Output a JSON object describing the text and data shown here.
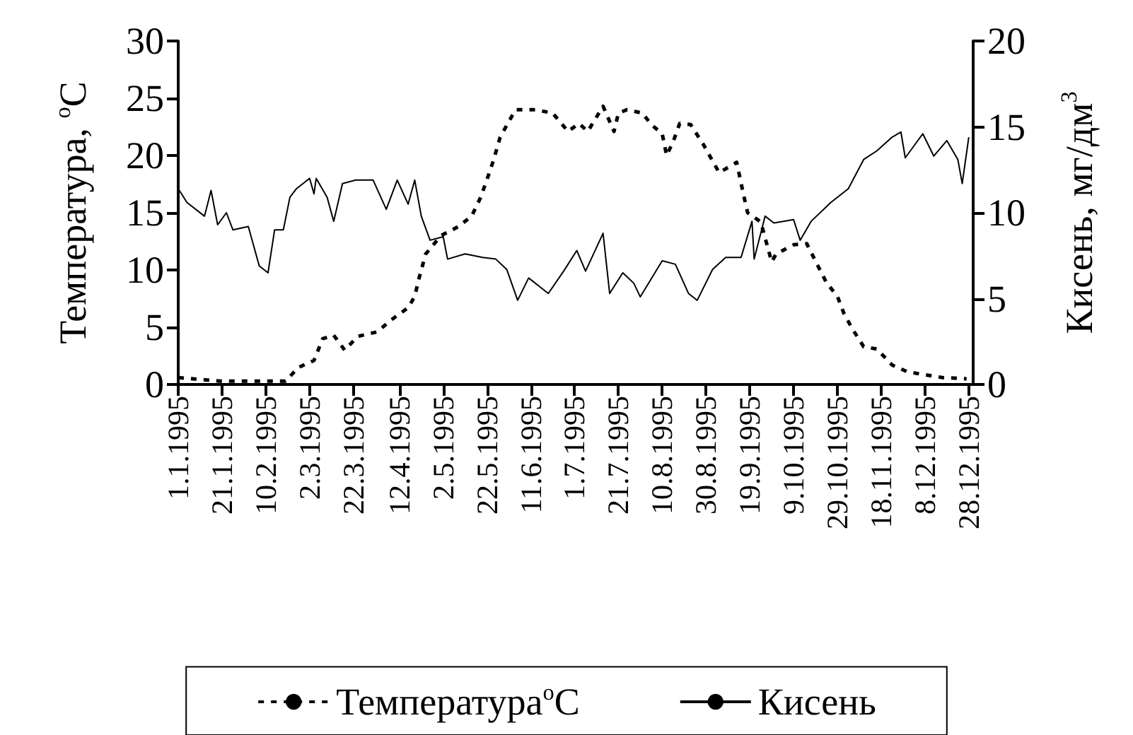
{
  "chart_data": {
    "type": "line",
    "ylabel": "Температура, $^{o}$C",
    "y2label": "Кисень, мг/дм$^{3}$",
    "xlim": [
      "1995-01-01",
      "1995-12-30"
    ],
    "xticks": [
      {
        "value": "1995-01-01",
        "label": "1.1.1995"
      },
      {
        "value": "1995-01-21",
        "label": "21.1.1995"
      },
      {
        "value": "1995-02-10",
        "label": "10.2.1995"
      },
      {
        "value": "1995-03-02",
        "label": "2.3.1995"
      },
      {
        "value": "1995-03-22",
        "label": "22.3.1995"
      },
      {
        "value": "1995-04-12",
        "label": "12.4.1995"
      },
      {
        "value": "1995-05-02",
        "label": "2.5.1995"
      },
      {
        "value": "1995-05-22",
        "label": "22.5.1995"
      },
      {
        "value": "1995-06-11",
        "label": "11.6.1995"
      },
      {
        "value": "1995-07-01",
        "label": "1.7.1995"
      },
      {
        "value": "1995-07-21",
        "label": "21.7.1995"
      },
      {
        "value": "1995-08-10",
        "label": "10.8.1995"
      },
      {
        "value": "1995-08-30",
        "label": "30.8.1995"
      },
      {
        "value": "1995-09-19",
        "label": "19.9.1995"
      },
      {
        "value": "1995-10-09",
        "label": "9.10.1995"
      },
      {
        "value": "1995-10-29",
        "label": "29.10.1995"
      },
      {
        "value": "1995-11-18",
        "label": "18.11.1995"
      },
      {
        "value": "1995-12-08",
        "label": "8.12.1995"
      },
      {
        "value": "1995-12-28",
        "label": "28.12.1995"
      }
    ],
    "ylim": [
      0,
      30
    ],
    "yticks": [
      0,
      5,
      10,
      15,
      20,
      25,
      30
    ],
    "y2lim": [
      0,
      20
    ],
    "y2ticks": [
      0,
      5,
      10,
      15,
      20
    ],
    "grid": false,
    "legend": "bottom",
    "marker": "none",
    "series": [
      {
        "name": "Температура$^{o}$C",
        "color": "#000000",
        "line_style": "dashed",
        "x": [
          "1995-01-01",
          "1995-01-20",
          "1995-02-19",
          "1995-02-25",
          "1995-03-04",
          "1995-03-08",
          "1995-03-13",
          "1995-03-18",
          "1995-03-24",
          "1995-04-02",
          "1995-04-08",
          "1995-04-16",
          "1995-04-19",
          "1995-04-21",
          "1995-04-24",
          "1995-05-01",
          "1995-05-09",
          "1995-05-15",
          "1995-05-19",
          "1995-05-22",
          "1995-05-25",
          "1995-05-28",
          "1995-06-04",
          "1995-06-13",
          "1995-06-21",
          "1995-06-28",
          "1995-07-03",
          "1995-07-07",
          "1995-07-14",
          "1995-07-19",
          "1995-07-21",
          "1995-07-25",
          "1995-08-01",
          "1995-08-05",
          "1995-08-10",
          "1995-08-12",
          "1995-08-15",
          "1995-08-18",
          "1995-08-23",
          "1995-08-29",
          "1995-09-05",
          "1995-09-13",
          "1995-09-16",
          "1995-09-18",
          "1995-09-24",
          "1995-09-29",
          "1995-10-01",
          "1995-10-09",
          "1995-10-15",
          "1995-10-20",
          "1995-10-24",
          "1995-10-29",
          "1995-11-01",
          "1995-11-05",
          "1995-11-10",
          "1995-11-16",
          "1995-11-23",
          "1995-11-30",
          "1995-12-16",
          "1995-12-27"
        ],
        "values": [
          0.6,
          0.3,
          0.3,
          1.5,
          2.1,
          4,
          4.3,
          3,
          4.2,
          4.6,
          5.6,
          6.7,
          7.7,
          9.3,
          11.4,
          13,
          13.8,
          14.7,
          16.3,
          17.9,
          19.6,
          21.6,
          24,
          24,
          23.7,
          22.1,
          22.8,
          22.1,
          24.3,
          22.1,
          23.7,
          24,
          23.7,
          22.7,
          21.9,
          20,
          21.2,
          22.8,
          22.7,
          20.9,
          18.5,
          19.4,
          16.7,
          15,
          14.2,
          10.7,
          11.4,
          12.2,
          12.3,
          10.4,
          8.9,
          7.7,
          6.2,
          4.8,
          3.3,
          3.1,
          1.7,
          1.1,
          0.6,
          0.5
        ]
      },
      {
        "name": "Кисень",
        "color": "#000000",
        "line_style": "solid",
        "axis": "y2",
        "x": [
          "1995-01-01",
          "1995-01-05",
          "1995-01-13",
          "1995-01-16",
          "1995-01-19",
          "1995-01-23",
          "1995-01-26",
          "1995-02-02",
          "1995-02-07",
          "1995-02-11",
          "1995-02-14",
          "1995-02-18",
          "1995-02-21",
          "1995-02-24",
          "1995-03-02",
          "1995-03-04",
          "1995-03-05",
          "1995-03-10",
          "1995-03-13",
          "1995-03-17",
          "1995-03-23",
          "1995-03-31",
          "1995-04-06",
          "1995-04-11",
          "1995-04-16",
          "1995-04-19",
          "1995-04-22",
          "1995-04-26",
          "1995-05-02",
          "1995-05-04",
          "1995-05-12",
          "1995-05-20",
          "1995-05-26",
          "1995-05-31",
          "1995-06-05",
          "1995-06-10",
          "1995-06-19",
          "1995-06-26",
          "1995-07-02",
          "1995-07-06",
          "1995-07-14",
          "1995-07-17",
          "1995-07-23",
          "1995-07-28",
          "1995-07-31",
          "1995-08-10",
          "1995-08-16",
          "1995-08-22",
          "1995-08-26",
          "1995-09-02",
          "1995-09-08",
          "1995-09-15",
          "1995-09-20",
          "1995-09-21",
          "1995-09-26",
          "1995-09-30",
          "1995-10-09",
          "1995-10-12",
          "1995-10-17",
          "1995-10-26",
          "1995-11-03",
          "1995-11-10",
          "1995-11-16",
          "1995-11-23",
          "1995-11-27",
          "1995-11-29",
          "1995-12-07",
          "1995-12-12",
          "1995-12-18",
          "1995-12-23",
          "1995-12-25",
          "1995-12-28"
        ],
        "values": [
          11.4,
          10.6,
          9.8,
          11.3,
          9.3,
          10,
          9,
          9.2,
          6.9,
          6.5,
          9,
          9,
          10.9,
          11.4,
          12,
          11.1,
          12,
          10.9,
          9.5,
          11.7,
          11.9,
          11.9,
          10.2,
          11.9,
          10.5,
          11.9,
          9.8,
          8.4,
          8.6,
          7.3,
          7.6,
          7.4,
          7.3,
          6.7,
          4.9,
          6.2,
          5.3,
          6.6,
          7.8,
          6.6,
          8.8,
          5.3,
          6.5,
          5.9,
          5.1,
          7.2,
          7,
          5.3,
          4.9,
          6.7,
          7.4,
          7.4,
          9.5,
          7.3,
          9.8,
          9.4,
          9.6,
          8.4,
          9.5,
          10.6,
          11.4,
          13.1,
          13.6,
          14.4,
          14.7,
          13.2,
          14.6,
          13.3,
          14.2,
          13.1,
          11.7,
          14.4
        ]
      }
    ]
  }
}
